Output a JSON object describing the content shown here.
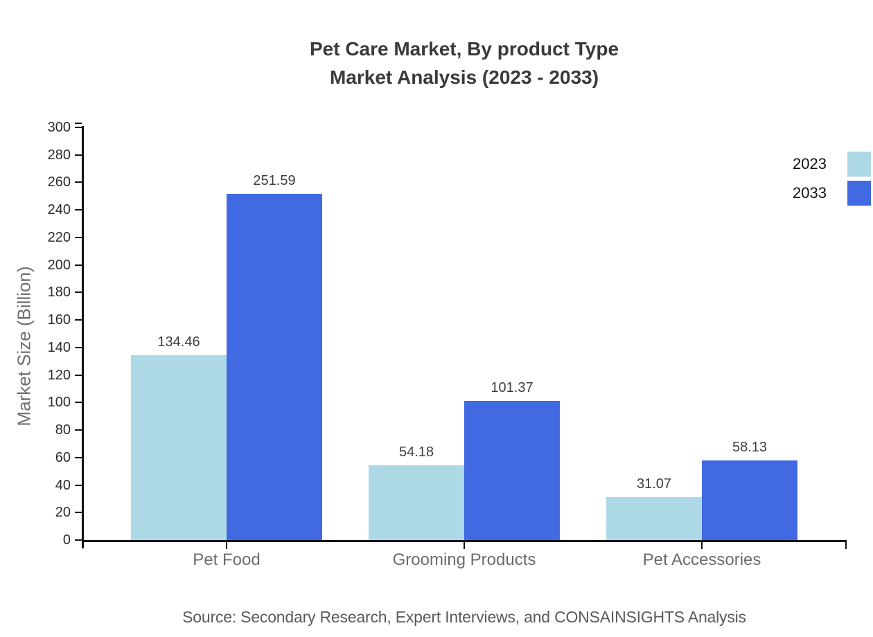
{
  "title": {
    "line1": "Pet Care Market, By product Type",
    "line2": "Market Analysis (2023 - 2033)"
  },
  "source": "Source: Secondary Research, Expert Interviews, and CONSAINSIGHTS Analysis",
  "colors": {
    "series_2023": "#add8e6",
    "series_2033": "#4169e1",
    "axis": "#111111",
    "title_text": "#3a3a3a",
    "category_text": "#6b6b6b",
    "source_text": "#5a5a5a"
  },
  "chart_data": {
    "type": "bar",
    "title": "Pet Care Market, By product Type Market Analysis (2023 - 2033)",
    "categories": [
      "Pet Food",
      "Grooming Products",
      "Pet Accessories"
    ],
    "series": [
      {
        "name": "2023",
        "color": "#add8e6",
        "values": [
          134.46,
          54.18,
          31.07
        ]
      },
      {
        "name": "2033",
        "color": "#4169e1",
        "values": [
          251.59,
          101.37,
          58.13
        ]
      }
    ],
    "xlabel": "",
    "ylabel": "Market Size (Billion)",
    "ylim": [
      0,
      300
    ],
    "yticks": [
      0,
      20,
      40,
      60,
      80,
      100,
      120,
      140,
      160,
      180,
      200,
      220,
      240,
      260,
      280,
      300
    ],
    "grid": false,
    "legend_position": "top-right",
    "value_labels_shown": true
  }
}
